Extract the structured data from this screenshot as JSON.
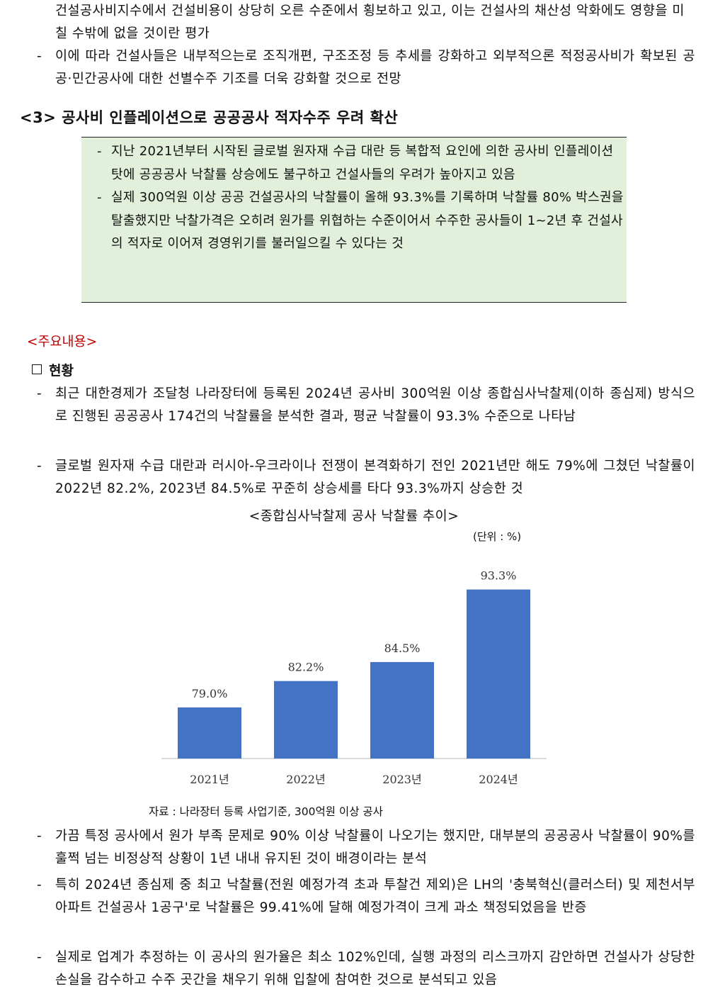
{
  "intro": {
    "p1_cont": "건설공사비지수에서 건설비용이 상당히 오른 수준에서 횡보하고 있고, 이는 건설사의 채산성 악화에도 영향을 미칠 수밖에 없을 것이란 평가",
    "p2": "이에 따라 건설사들은 내부적으는로 조직개편, 구조조정 등 추세를 강화하고 외부적으론 적정공사비가 확보된 공공·민간공사에 대한 선별수주 기조를 더욱 강화할 것으로 전망"
  },
  "section3": {
    "title": "<3> 공사비 인플레이션으로 공공공사 적자수주 우려 확산",
    "summary": [
      "지난 2021년부터 시작된 글로벌 원자재 수급 대란 등 복합적 요인에 의한 공사비 인플레이션 탓에 공공공사 낙찰률 상승에도 불구하고 건설사들의 우려가 높아지고 있음",
      "실제 300억원 이상 공공 건설공사의 낙찰률이 올해 93.3%를 기록하며 낙찰률 80% 박스권을 탈출했지만 낙찰가격은 오히려 원가를 위협하는 수준이어서 수주한 공사들이 1~2년 후 건설사의 적자로 이어져 경영위기를 불러일으킬 수 있다는 것"
    ]
  },
  "main": {
    "major_label": "<주요내용>",
    "section_head": "현황",
    "bullets_before": [
      "최근 대한경제가 조달청 나라장터에 등록된 2024년 공사비 300억원 이상 종합심사낙찰제(이하 종심제) 방식으로 진행된 공공공사 174건의 낙찰률을 분석한 결과, 평균 낙찰률이 93.3% 수준으로 나타남",
      "글로벌 원자재 수급 대란과 러시아-우크라이나 전쟁이 본격화하기 전인 2021년만 해도 79%에 그쳤던 낙찰률이 2022년 82.2%, 2023년 84.5%로 꾸준히 상승세를 타다 93.3%까지 상승한 것"
    ],
    "chart_title": "<종합심사낙찰제 공사 낙찰률 추이>",
    "unit": "(단위 : %)",
    "source": "자료 : 나라장터 등록 사업기준, 300억원 이상 공사",
    "bullets_after": [
      "가끔 특정 공사에서 원가 부족 문제로 90% 이상 낙찰률이 나오기는 했지만, 대부분의 공공공사 낙찰률이 90%를 훌쩍 넘는 비정상적 상황이 1년 내내 유지된 것이 배경이라는 분석",
      "특히 2024년 종심제 중 최고 낙찰률(전원 예정가격 초과 투찰건 제외)은 LH의 '충북혁신(클러스터) 및 제천서부 아파트 건설공사 1공구'로 낙찰률은 99.41%에 달해 예정가격이 크게 과소 책정되었음을 반증",
      "실제로 업계가 추정하는 이 공사의 원가율은 최소 102%인데, 실행 과정의 리스크까지 감안하면 건설사가 상당한 손실을 감수하고 수주 곳간을 채우기 위해 입찰에 참여한 것으로 분석되고 있음"
    ]
  },
  "dash": "-",
  "colors": {
    "bar": "#4472c4",
    "summary_bg": "#e2efda",
    "major_label": "#c00000"
  },
  "chart_data": {
    "type": "bar",
    "categories": [
      "2021년",
      "2022년",
      "2023년",
      "2024년"
    ],
    "values": [
      79.0,
      82.2,
      84.5,
      93.3
    ],
    "value_labels": [
      "79.0%",
      "82.2%",
      "84.5%",
      "93.3%"
    ],
    "title": "<종합심사낙찰제 공사 낙찰률 추이>",
    "xlabel": "",
    "ylabel": "",
    "grid": false,
    "legend": "none"
  }
}
